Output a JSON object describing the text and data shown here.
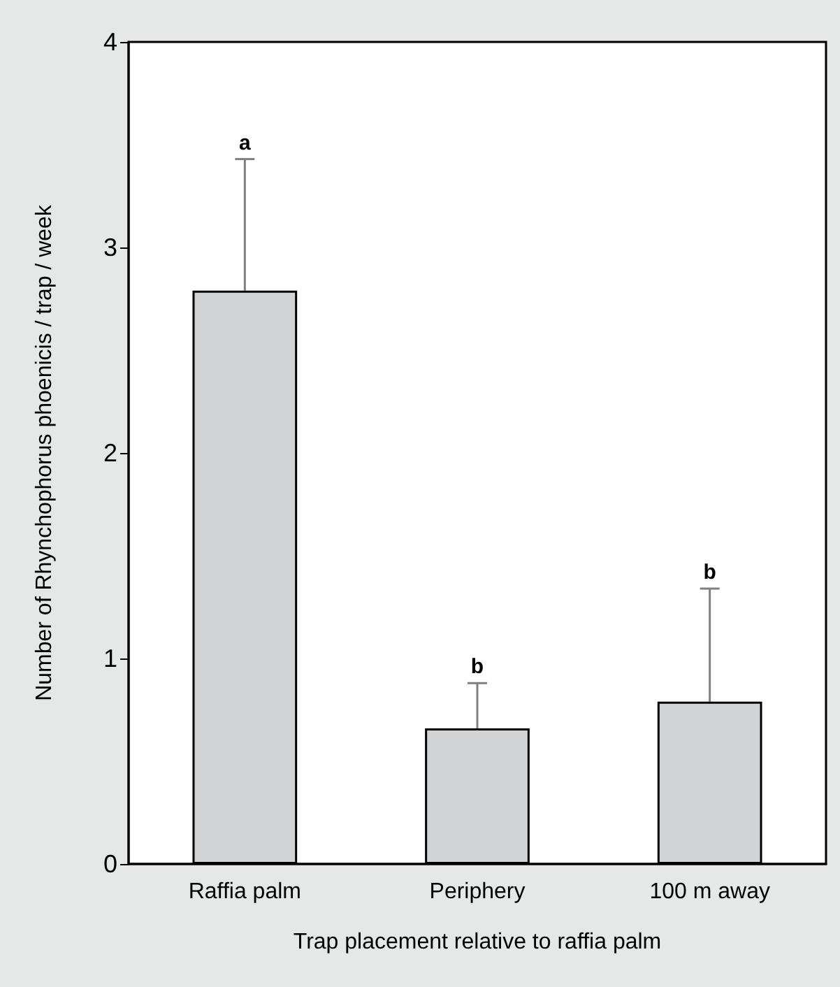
{
  "chart_data": {
    "type": "bar",
    "xlabel": "Trap placement relative to raffia palm",
    "ylabel": "Number of Rhynchophorus phoenicis / trap / week",
    "categories": [
      "Raffia palm",
      "Periphery",
      "100 m away"
    ],
    "values": [
      2.79,
      0.66,
      0.79
    ],
    "errors": [
      [
        2.79,
        3.43
      ],
      [
        0.66,
        0.88
      ],
      [
        0.79,
        1.34
      ]
    ],
    "color": "#d1d3d4",
    "ylim": [
      0,
      4
    ],
    "yticks": [
      0,
      1,
      2,
      3,
      4
    ],
    "grid": false,
    "annotations": [
      {
        "text": "a",
        "x": "Raffia palm",
        "y": 3.43
      },
      {
        "text": "b",
        "x": "Periphery",
        "y": 0.88
      },
      {
        "text": "b",
        "x": "100 m away",
        "y": 1.34
      }
    ]
  }
}
